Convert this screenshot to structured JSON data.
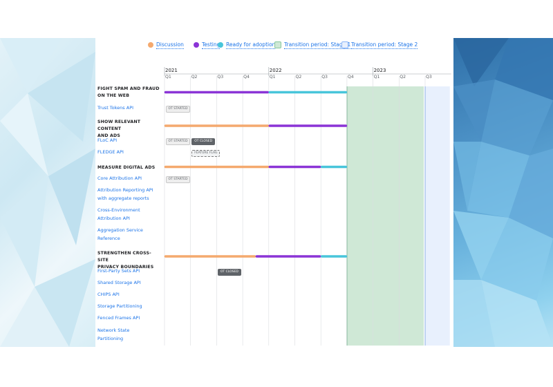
{
  "legend": [
    {
      "label": "Discussion",
      "color": "#f4a96e"
    },
    {
      "label": "Testing",
      "color": "#8b34d6"
    },
    {
      "label": "Ready for adoption",
      "color": "#48c5da"
    },
    {
      "label": "Transition period: Stage 1",
      "color": "#cfe8d6"
    },
    {
      "label": "Transition period: Stage 2",
      "color": "#e8f0fd"
    }
  ],
  "chart_data": {
    "type": "gantt",
    "time_axis": {
      "quarters": [
        "Q1",
        "Q2",
        "Q3",
        "Q4",
        "Q1",
        "Q2",
        "Q3",
        "Q4",
        "Q1",
        "Q2",
        "Q3"
      ],
      "years": [
        {
          "label": "2021",
          "start_quarter": 0
        },
        {
          "label": "2022",
          "start_quarter": 4
        },
        {
          "label": "2023",
          "start_quarter": 8
        }
      ]
    },
    "transition_periods": [
      {
        "name": "Transition period: Stage 1",
        "start": 7,
        "end": 10,
        "color": "#cfe8d6",
        "line_color": "#2e8b57"
      },
      {
        "name": "Transition period: Stage 2",
        "start": 10,
        "end": 11,
        "color": "#e8f0fd",
        "line_color": "#1a73e8"
      }
    ],
    "categories": [
      {
        "title_lines": [
          "FIGHT SPAM AND FRAUD",
          "ON THE WEB"
        ],
        "bars": [
          {
            "phase": "Testing",
            "start": 0,
            "end": 4
          },
          {
            "phase": "Ready for adoption",
            "start": 4,
            "end": 7
          }
        ],
        "apis": [
          {
            "lines": [
              "Trust Tokens API"
            ],
            "badges": [
              {
                "text": "OT STARTED",
                "quarter": 0,
                "style": "light"
              }
            ]
          }
        ]
      },
      {
        "title_lines": [
          "SHOW RELEVANT CONTENT",
          "AND ADS"
        ],
        "bars": [
          {
            "phase": "Discussion",
            "start": 0,
            "end": 4
          },
          {
            "phase": "Testing",
            "start": 4,
            "end": 7
          }
        ],
        "apis": [
          {
            "lines": [
              "FLoC API"
            ],
            "badges": [
              {
                "text": "OT STARTED",
                "quarter": 0,
                "style": "light"
              },
              {
                "text": "OT CLOSED",
                "quarter": 1,
                "style": "dark"
              }
            ]
          },
          {
            "lines": [
              "FLEDGE API"
            ],
            "badges": [
              {
                "text": "FEATURE FLAG",
                "quarter": 1,
                "style": "dashed"
              }
            ]
          }
        ]
      },
      {
        "title_lines": [
          "MEASURE DIGITAL ADS"
        ],
        "bars": [
          {
            "phase": "Discussion",
            "start": 0,
            "end": 4
          },
          {
            "phase": "Testing",
            "start": 4,
            "end": 6
          },
          {
            "phase": "Ready for adoption",
            "start": 6,
            "end": 7
          }
        ],
        "apis": [
          {
            "lines": [
              "Core Attribution API"
            ],
            "badges": [
              {
                "text": "OT STARTED",
                "quarter": 0,
                "style": "light"
              }
            ]
          },
          {
            "lines": [
              "Attribution Reporting API",
              "with aggregate reports"
            ],
            "badges": []
          },
          {
            "lines": [
              "Cross-Environment",
              "Attribution API"
            ],
            "badges": []
          },
          {
            "lines": [
              "Aggregation Service",
              "Reference"
            ],
            "badges": []
          }
        ]
      },
      {
        "title_lines": [
          "STRENGTHEN CROSS-SITE",
          "PRIVACY BOUNDARIES"
        ],
        "bars": [
          {
            "phase": "Discussion",
            "start": 0,
            "end": 3.5
          },
          {
            "phase": "Testing",
            "start": 3.5,
            "end": 6
          },
          {
            "phase": "Ready for adoption",
            "start": 6,
            "end": 7
          }
        ],
        "apis": [
          {
            "lines": [
              "First-Party Sets API"
            ],
            "badges": [
              {
                "text": "OT CLOSED",
                "quarter": 2,
                "style": "dark"
              }
            ]
          },
          {
            "lines": [
              "Shared Storage API"
            ],
            "badges": []
          },
          {
            "lines": [
              "CHIPS API"
            ],
            "badges": []
          },
          {
            "lines": [
              "Storage Partitioning"
            ],
            "badges": []
          },
          {
            "lines": [
              "Fenced Frames API"
            ],
            "badges": []
          },
          {
            "lines": [
              "Network State",
              "Partitioning"
            ],
            "badges": []
          }
        ]
      }
    ]
  }
}
